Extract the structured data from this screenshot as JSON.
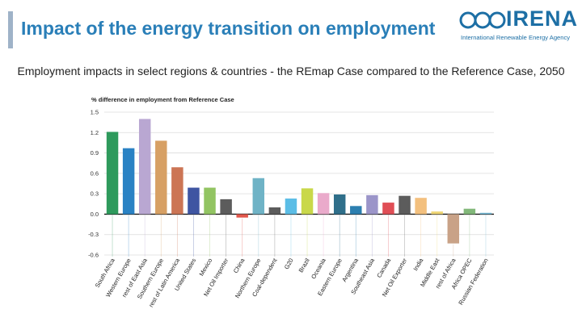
{
  "slide": {
    "title": "Impact of the energy transition on employment",
    "subtitle": "Employment impacts in select regions & countries - the REmap Case compared to the Reference Case, 2050"
  },
  "logo": {
    "name": "IRENA",
    "tagline": "International Renewable Energy Agency"
  },
  "colors": {
    "title": "#2a7fb8",
    "accent_bar": "#9fb3c8",
    "logo": "#1d6fa5"
  },
  "chart_data": {
    "type": "bar",
    "ylabel": "% difference in employment from Reference Case",
    "ylim": [
      -0.6,
      1.5
    ],
    "yticks": [
      "1.5",
      "1.2",
      "0.9",
      "0.6",
      "0.3",
      "0.0",
      "-0.3",
      "-0.6"
    ],
    "ytick_values": [
      1.5,
      1.2,
      0.9,
      0.6,
      0.3,
      0.0,
      -0.3,
      -0.6
    ],
    "grid": true,
    "categories": [
      "South Africa",
      "Western Europe",
      "rest of East Asia",
      "Southern Europe",
      "rest of Latin America",
      "United States",
      "Mexico",
      "Net Oil Importer",
      "China",
      "Northern Europe",
      "Coal-dependent",
      "G20",
      "Brazil",
      "Oceania",
      "Eastern Europe",
      "Argentina",
      "Southeast Asia",
      "Canada",
      "Net Oil Exporter",
      "India",
      "Middle East",
      "rest of Africa",
      "Africa OPEC",
      "Russian Federation"
    ],
    "values": [
      1.21,
      0.97,
      1.4,
      1.08,
      0.69,
      0.39,
      0.39,
      0.22,
      -0.05,
      0.53,
      0.1,
      0.23,
      0.38,
      0.31,
      0.29,
      0.12,
      0.28,
      0.17,
      0.27,
      0.24,
      0.04,
      -0.43,
      0.08,
      0.02
    ],
    "bar_colors": [
      "#2e9a5c",
      "#2a82c4",
      "#b9a7d2",
      "#d7a064",
      "#cc7555",
      "#3f55a2",
      "#92c462",
      "#5c5c5c",
      "#e2574c",
      "#6fb3c6",
      "#5c5c5c",
      "#5bbde6",
      "#c9d84a",
      "#eaaacb",
      "#2f6f8a",
      "#2c7fb0",
      "#9b95c9",
      "#e04e56",
      "#5c5c5c",
      "#f3c07e",
      "#f0d776",
      "#c9a287",
      "#82b87a",
      "#74b9d5"
    ]
  }
}
